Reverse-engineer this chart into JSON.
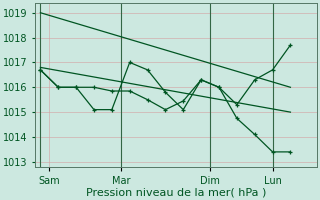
{
  "background_color": "#cce8e0",
  "grid_color": "#d4a0a0",
  "line_color": "#005522",
  "vline_color": "#336644",
  "ylim": [
    1012.8,
    1019.4
  ],
  "yticks": [
    1013,
    1014,
    1015,
    1016,
    1017,
    1018,
    1019
  ],
  "xlabel": "Pression niveau de la mer( hPa )",
  "xlabel_fontsize": 8,
  "tick_fontsize": 7,
  "day_labels": [
    "Sam",
    "Mar",
    "Dim",
    "Lun"
  ],
  "day_positions": [
    0.5,
    4.5,
    9.5,
    13.0
  ],
  "xlim": [
    -0.3,
    15.5
  ],
  "trend1": {
    "x": [
      0,
      14
    ],
    "y": [
      1019.0,
      1016.0
    ]
  },
  "trend2": {
    "x": [
      0,
      14
    ],
    "y": [
      1016.8,
      1015.0
    ]
  },
  "jagged1": {
    "x": [
      0,
      1,
      2,
      3,
      4,
      5,
      6,
      7,
      8,
      9,
      10,
      11,
      12,
      13,
      14
    ],
    "y": [
      1016.7,
      1016.0,
      1016.0,
      1015.1,
      1015.1,
      1017.0,
      1016.7,
      1015.8,
      1015.1,
      1016.3,
      1016.0,
      1014.75,
      1014.1,
      1013.4,
      1013.4
    ]
  },
  "jagged2": {
    "x": [
      0,
      1,
      2,
      3,
      4,
      5,
      6,
      7,
      8,
      9,
      10,
      11,
      12,
      13,
      14
    ],
    "y": [
      1016.7,
      1016.0,
      1016.0,
      1016.0,
      1015.85,
      1015.85,
      1015.5,
      1015.1,
      1015.45,
      1016.3,
      1016.0,
      1015.3,
      1016.3,
      1016.7,
      1017.7
    ]
  },
  "vline_positions": [
    0.0,
    4.5,
    9.5,
    13.0
  ]
}
